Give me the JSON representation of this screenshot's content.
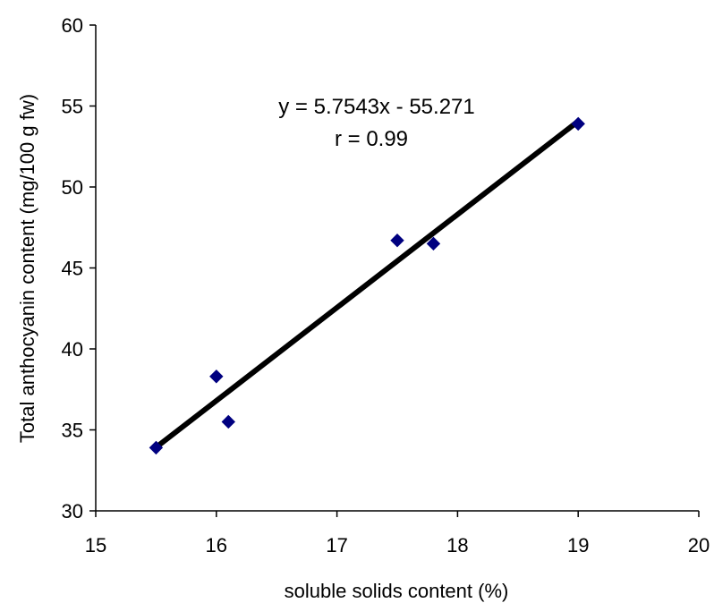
{
  "chart_data": {
    "type": "scatter",
    "title": "",
    "xlabel": "soluble solids content (%)",
    "ylabel": "Total anthocyanin content (mg/100 g fw)",
    "xlim": [
      15,
      20
    ],
    "ylim": [
      30,
      60
    ],
    "x_ticks": [
      15,
      16,
      17,
      18,
      19,
      20
    ],
    "y_ticks": [
      30,
      35,
      40,
      45,
      50,
      55,
      60
    ],
    "grid": false,
    "legend": "none",
    "series": [
      {
        "marker": "diamond",
        "color": "#000080",
        "points": [
          {
            "x": 15.5,
            "y": 33.9
          },
          {
            "x": 16.0,
            "y": 38.3
          },
          {
            "x": 16.1,
            "y": 35.5
          },
          {
            "x": 17.5,
            "y": 46.7
          },
          {
            "x": 17.8,
            "y": 46.5
          },
          {
            "x": 19.0,
            "y": 53.9
          }
        ]
      }
    ],
    "trendline": {
      "color": "#000000",
      "slope": 5.7543,
      "intercept": -55.271,
      "x_range": [
        15.5,
        19.0
      ]
    },
    "annotations": {
      "equation": "y = 5.7543x - 55.271",
      "r_value": "r = 0.99"
    }
  }
}
